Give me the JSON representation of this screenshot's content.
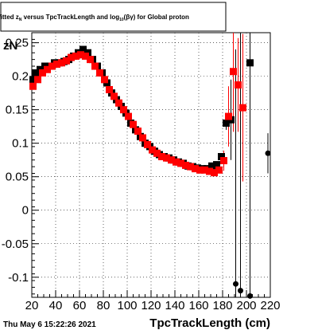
{
  "chart_data": {
    "type": "scatter",
    "title": {
      "pre": "fitted z",
      "pre_sub": "N",
      "mid": " versus TpcTrackLength and log",
      "mid_sub": "10",
      "post": "(βγ) for Global proton"
    },
    "xlabel": "TpcTrackLength (cm)",
    "ylabel_visible": "zN",
    "xlim": [
      20,
      220
    ],
    "ylim": [
      -0.13,
      0.265
    ],
    "x_ticks": [
      20,
      40,
      60,
      80,
      100,
      120,
      140,
      160,
      180,
      200,
      220
    ],
    "y_ticks": [
      -0.1,
      -0.05,
      0,
      0.05,
      0.1,
      0.15,
      0.2,
      0.25
    ],
    "y_tick_labels": [
      "-0.1",
      "-0.05",
      "0",
      "0.05",
      "0.1",
      "0.15",
      "0.2",
      "0.25"
    ],
    "grid": true,
    "footer": "Thu May  6 15:22:26 2021",
    "series": [
      {
        "marker": "square",
        "color": "#000000",
        "x": [
          21,
          23,
          27,
          31,
          35,
          39,
          43,
          47,
          51,
          55,
          59,
          63,
          67,
          71,
          75,
          79,
          83,
          87,
          91,
          95,
          99,
          103,
          107,
          111,
          115,
          119,
          123,
          127,
          131,
          135,
          139,
          143,
          147,
          151,
          155,
          159,
          163,
          167,
          171,
          175,
          179,
          183,
          187,
          203
        ],
        "y": [
          0.195,
          0.205,
          0.21,
          0.215,
          0.215,
          0.22,
          0.22,
          0.222,
          0.225,
          0.23,
          0.235,
          0.24,
          0.235,
          0.225,
          0.215,
          0.205,
          0.19,
          0.175,
          0.165,
          0.155,
          0.145,
          0.13,
          0.12,
          0.11,
          0.1,
          0.095,
          0.088,
          0.083,
          0.08,
          0.078,
          0.075,
          0.072,
          0.07,
          0.066,
          0.065,
          0.063,
          0.062,
          0.062,
          0.066,
          0.068,
          0.08,
          0.13,
          0.135,
          0.22
        ],
        "err": [
          0,
          0,
          0,
          0,
          0,
          0,
          0,
          0,
          0,
          0,
          0,
          0,
          0,
          0,
          0,
          0,
          0,
          0,
          0,
          0,
          0,
          0,
          0,
          0,
          0,
          0,
          0,
          0,
          0,
          0,
          0,
          0,
          0,
          0,
          0,
          0,
          0,
          0,
          0,
          0,
          0,
          0.01,
          0.06,
          0.36
        ]
      },
      {
        "marker": "square",
        "color": "#ff0000",
        "x": [
          21,
          25,
          29,
          33,
          37,
          41,
          45,
          49,
          53,
          57,
          61,
          65,
          69,
          73,
          77,
          81,
          85,
          89,
          93,
          97,
          101,
          105,
          109,
          113,
          117,
          121,
          125,
          129,
          133,
          137,
          141,
          145,
          149,
          153,
          157,
          161,
          165,
          169,
          173,
          177,
          181,
          185,
          189,
          193,
          197
        ],
        "y": [
          0.185,
          0.195,
          0.205,
          0.21,
          0.215,
          0.218,
          0.22,
          0.223,
          0.228,
          0.23,
          0.232,
          0.23,
          0.225,
          0.215,
          0.205,
          0.195,
          0.18,
          0.17,
          0.16,
          0.15,
          0.14,
          0.128,
          0.118,
          0.108,
          0.098,
          0.09,
          0.085,
          0.08,
          0.078,
          0.075,
          0.072,
          0.07,
          0.067,
          0.065,
          0.062,
          0.06,
          0.06,
          0.058,
          0.056,
          0.06,
          0.074,
          0.14,
          0.207,
          0.187,
          0.153
        ],
        "err": [
          0,
          0,
          0,
          0,
          0,
          0,
          0,
          0,
          0,
          0,
          0,
          0,
          0,
          0,
          0,
          0,
          0,
          0,
          0,
          0,
          0,
          0,
          0,
          0,
          0,
          0,
          0,
          0,
          0,
          0,
          0,
          0,
          0,
          0,
          0,
          0,
          0,
          0,
          0,
          0,
          0.015,
          0.045,
          0.09,
          0.07,
          0.11
        ]
      },
      {
        "marker": "circle",
        "color": "#000000",
        "x": [
          191,
          195,
          203
        ],
        "y": [
          -0.11,
          -0.12,
          -0.128
        ],
        "err": [
          0.35,
          0.4,
          0.4
        ]
      }
    ],
    "overflow_point": {
      "marker": "circle",
      "color": "#000000",
      "x": 220,
      "y": 0.085,
      "note_err": 0.03
    }
  }
}
